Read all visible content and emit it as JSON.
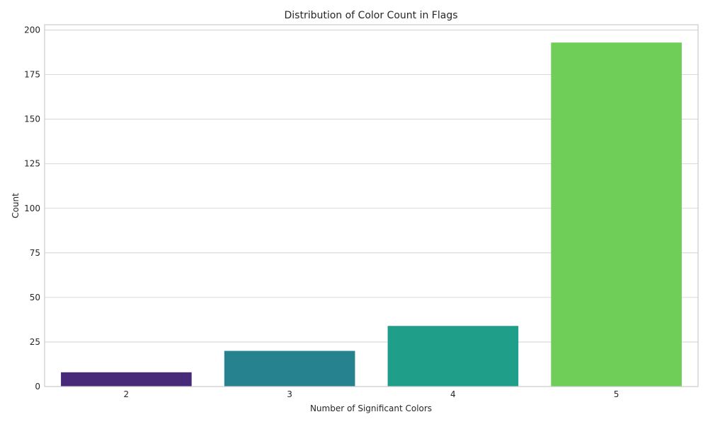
{
  "chart_data": {
    "type": "bar",
    "title": "Distribution of Color Count in Flags",
    "xlabel": "Number of Significant Colors",
    "ylabel": "Count",
    "categories": [
      "2",
      "3",
      "4",
      "5"
    ],
    "values": [
      8,
      20,
      34,
      193
    ],
    "colors": [
      "#482878",
      "#26828e",
      "#1f9e89",
      "#6ece58"
    ],
    "ylim": [
      0,
      203
    ],
    "yticks": [
      0,
      25,
      50,
      75,
      100,
      125,
      150,
      175,
      200
    ],
    "grid": true,
    "legend": "none"
  }
}
